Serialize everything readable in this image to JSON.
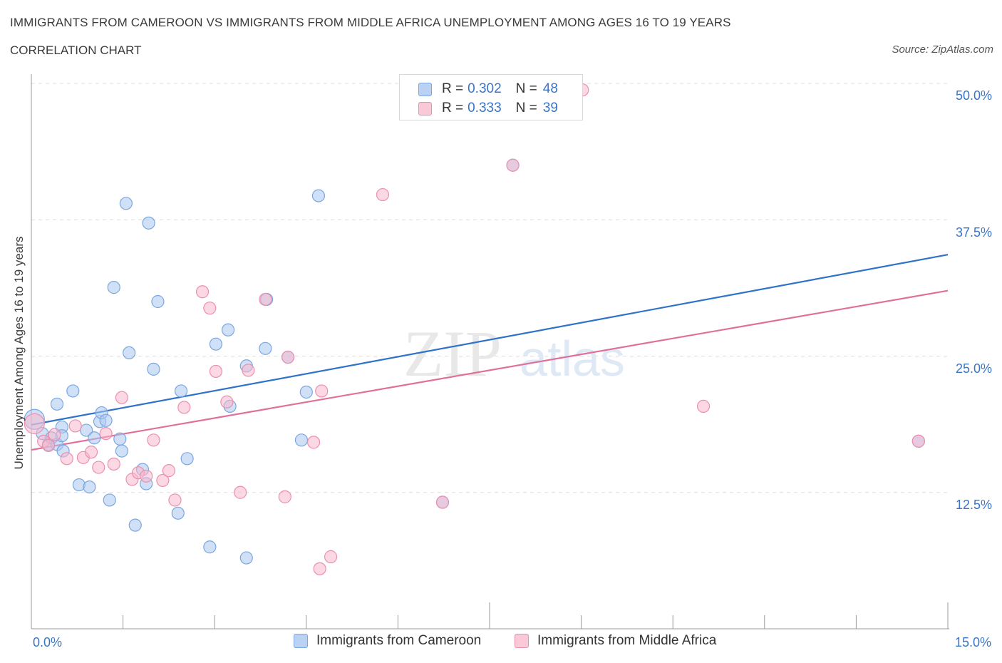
{
  "header": {
    "title": "IMMIGRANTS FROM CAMEROON VS IMMIGRANTS FROM MIDDLE AFRICA UNEMPLOYMENT AMONG AGES 16 TO 19 YEARS",
    "subtitle": "CORRELATION CHART",
    "source": "Source: ZipAtlas.com"
  },
  "legend": {
    "rows": [
      {
        "r_label": "R =",
        "r_value": "0.302",
        "n_label": "N =",
        "n_value": "48"
      },
      {
        "r_label": "R =",
        "r_value": "0.333",
        "n_label": "N =",
        "n_value": "39"
      }
    ]
  },
  "bottom_legend": {
    "items": [
      "Immigrants from Cameroon",
      "Immigrants from Middle Africa"
    ]
  },
  "watermark": {
    "zip": "ZIP",
    "atlas": "atlas"
  },
  "colors": {
    "cameroon_fill": "#a9c8f0",
    "cameroon_stroke": "#7ba6df",
    "cameroon_line": "#2f72c9",
    "middle_africa_fill": "#f7b8cc",
    "middle_africa_stroke": "#ec8fae",
    "middle_africa_line": "#e0709a",
    "tick_text": "#3a74c6",
    "grid": "#dddddd"
  },
  "chart_data": {
    "type": "scatter",
    "title": "IMMIGRANTS FROM CAMEROON VS IMMIGRANTS FROM MIDDLE AFRICA UNEMPLOYMENT AMONG AGES 16 TO 19 YEARS",
    "subtitle": "CORRELATION CHART",
    "xlabel": "",
    "ylabel": "Unemployment Among Ages 16 to 19 years",
    "xlim": [
      0,
      15
    ],
    "ylim": [
      0,
      50
    ],
    "x_tick_labels": [
      "0.0%",
      "15.0%"
    ],
    "y_ticks": [
      12.5,
      25.0,
      37.5,
      50.0
    ],
    "y_tick_labels": [
      "12.5%",
      "25.0%",
      "37.5%",
      "50.0%"
    ],
    "grid": "horizontal dashed",
    "legend_position": "top-center",
    "series": [
      {
        "name": "Immigrants from Cameroon",
        "R": 0.302,
        "N": 48,
        "trend": {
          "x": [
            0,
            15
          ],
          "y": [
            18.7,
            34.3
          ]
        },
        "points": [
          {
            "x": 0.05,
            "y": 19.2,
            "big": true
          },
          {
            "x": 0.18,
            "y": 17.9
          },
          {
            "x": 0.28,
            "y": 16.9
          },
          {
            "x": 0.33,
            "y": 17.5
          },
          {
            "x": 0.42,
            "y": 16.9
          },
          {
            "x": 0.5,
            "y": 18.5
          },
          {
            "x": 0.5,
            "y": 17.7
          },
          {
            "x": 0.42,
            "y": 20.6
          },
          {
            "x": 0.52,
            "y": 16.3
          },
          {
            "x": 0.68,
            "y": 21.8
          },
          {
            "x": 0.78,
            "y": 13.2
          },
          {
            "x": 0.9,
            "y": 18.2
          },
          {
            "x": 0.95,
            "y": 13.0
          },
          {
            "x": 1.03,
            "y": 17.5
          },
          {
            "x": 1.12,
            "y": 19.0
          },
          {
            "x": 1.15,
            "y": 19.8
          },
          {
            "x": 1.22,
            "y": 19.1
          },
          {
            "x": 1.28,
            "y": 11.8
          },
          {
            "x": 1.35,
            "y": 31.3
          },
          {
            "x": 1.45,
            "y": 17.4
          },
          {
            "x": 1.48,
            "y": 16.3
          },
          {
            "x": 1.55,
            "y": 39.0
          },
          {
            "x": 1.6,
            "y": 25.3
          },
          {
            "x": 1.7,
            "y": 9.5
          },
          {
            "x": 1.82,
            "y": 14.6
          },
          {
            "x": 1.88,
            "y": 13.3
          },
          {
            "x": 1.92,
            "y": 37.2
          },
          {
            "x": 2.0,
            "y": 23.8
          },
          {
            "x": 2.07,
            "y": 30.0
          },
          {
            "x": 2.4,
            "y": 10.6
          },
          {
            "x": 2.45,
            "y": 21.8
          },
          {
            "x": 2.55,
            "y": 15.6
          },
          {
            "x": 2.92,
            "y": 7.5
          },
          {
            "x": 3.02,
            "y": 26.1
          },
          {
            "x": 3.22,
            "y": 27.4
          },
          {
            "x": 3.25,
            "y": 20.4
          },
          {
            "x": 3.52,
            "y": 24.1
          },
          {
            "x": 3.52,
            "y": 6.5
          },
          {
            "x": 3.83,
            "y": 25.7
          },
          {
            "x": 3.85,
            "y": 30.2
          },
          {
            "x": 4.2,
            "y": 24.9
          },
          {
            "x": 4.5,
            "y": 21.7
          },
          {
            "x": 4.42,
            "y": 17.3
          },
          {
            "x": 4.7,
            "y": 39.7
          },
          {
            "x": 6.73,
            "y": 11.6
          },
          {
            "x": 7.88,
            "y": 42.5
          },
          {
            "x": 8.25,
            "y": 49.1
          },
          {
            "x": 14.52,
            "y": 17.2
          }
        ]
      },
      {
        "name": "Immigrants from Middle Africa",
        "R": 0.333,
        "N": 39,
        "trend": {
          "x": [
            0,
            15
          ],
          "y": [
            16.4,
            31.0
          ]
        },
        "points": [
          {
            "x": 0.05,
            "y": 18.8,
            "big": true
          },
          {
            "x": 0.2,
            "y": 17.2
          },
          {
            "x": 0.28,
            "y": 16.8
          },
          {
            "x": 0.38,
            "y": 17.8
          },
          {
            "x": 0.58,
            "y": 15.6
          },
          {
            "x": 0.72,
            "y": 18.6
          },
          {
            "x": 0.85,
            "y": 15.7
          },
          {
            "x": 0.98,
            "y": 16.2
          },
          {
            "x": 1.1,
            "y": 14.8
          },
          {
            "x": 1.22,
            "y": 17.9
          },
          {
            "x": 1.35,
            "y": 15.1
          },
          {
            "x": 1.48,
            "y": 21.2
          },
          {
            "x": 1.65,
            "y": 13.7
          },
          {
            "x": 1.75,
            "y": 14.3
          },
          {
            "x": 1.88,
            "y": 14.0
          },
          {
            "x": 2.0,
            "y": 17.3
          },
          {
            "x": 2.15,
            "y": 13.6
          },
          {
            "x": 2.25,
            "y": 14.5
          },
          {
            "x": 2.35,
            "y": 11.8
          },
          {
            "x": 2.5,
            "y": 20.3
          },
          {
            "x": 2.8,
            "y": 30.9
          },
          {
            "x": 2.92,
            "y": 29.4
          },
          {
            "x": 3.02,
            "y": 23.6
          },
          {
            "x": 3.2,
            "y": 20.8
          },
          {
            "x": 3.42,
            "y": 12.5
          },
          {
            "x": 3.55,
            "y": 23.7
          },
          {
            "x": 3.83,
            "y": 30.2
          },
          {
            "x": 4.2,
            "y": 24.9
          },
          {
            "x": 4.15,
            "y": 12.1
          },
          {
            "x": 4.62,
            "y": 17.1
          },
          {
            "x": 4.72,
            "y": 5.5
          },
          {
            "x": 4.75,
            "y": 21.8
          },
          {
            "x": 4.9,
            "y": 6.6
          },
          {
            "x": 5.75,
            "y": 39.8
          },
          {
            "x": 6.73,
            "y": 11.6
          },
          {
            "x": 7.88,
            "y": 42.5
          },
          {
            "x": 9.02,
            "y": 49.4
          },
          {
            "x": 11.0,
            "y": 20.4
          },
          {
            "x": 14.52,
            "y": 17.2
          }
        ]
      }
    ]
  }
}
